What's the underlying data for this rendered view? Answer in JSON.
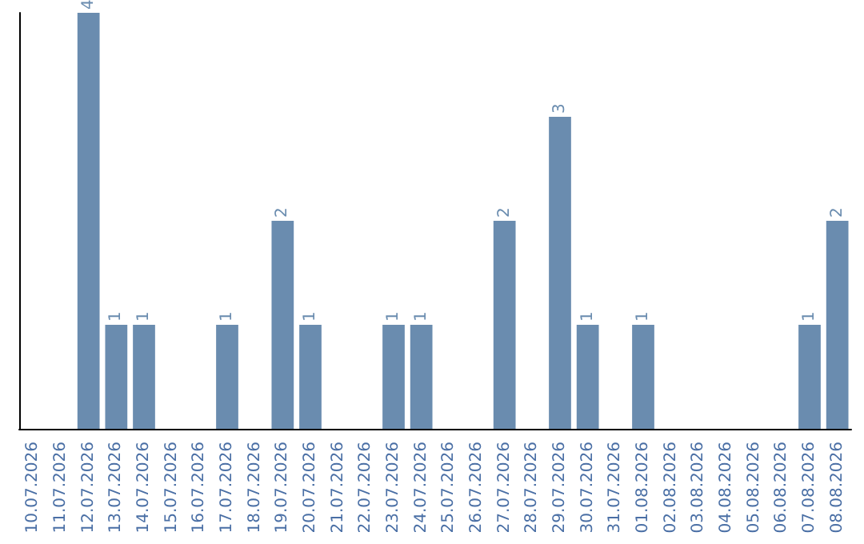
{
  "chart_data": {
    "type": "bar",
    "categories": [
      "10.07.2026",
      "11.07.2026",
      "12.07.2026",
      "13.07.2026",
      "14.07.2026",
      "15.07.2026",
      "16.07.2026",
      "17.07.2026",
      "18.07.2026",
      "19.07.2026",
      "20.07.2026",
      "21.07.2026",
      "22.07.2026",
      "23.07.2026",
      "24.07.2026",
      "25.07.2026",
      "26.07.2026",
      "27.07.2026",
      "28.07.2026",
      "29.07.2026",
      "30.07.2026",
      "31.07.2026",
      "01.08.2026",
      "02.08.2026",
      "03.08.2026",
      "04.08.2026",
      "05.08.2026",
      "06.08.2026",
      "07.08.2026",
      "08.08.2026"
    ],
    "values": [
      0,
      0,
      4,
      1,
      1,
      0,
      0,
      1,
      0,
      2,
      1,
      0,
      0,
      1,
      1,
      0,
      0,
      2,
      0,
      3,
      1,
      0,
      1,
      0,
      0,
      0,
      0,
      0,
      1,
      2
    ],
    "value_labels": [
      null,
      null,
      "4",
      "1",
      "1",
      null,
      null,
      "1",
      null,
      "2",
      "1",
      null,
      null,
      "1",
      "1",
      null,
      null,
      "2",
      null,
      "3",
      "1",
      null,
      "1",
      null,
      null,
      null,
      null,
      null,
      "1",
      "2"
    ],
    "color": "#6a8caf"
  }
}
